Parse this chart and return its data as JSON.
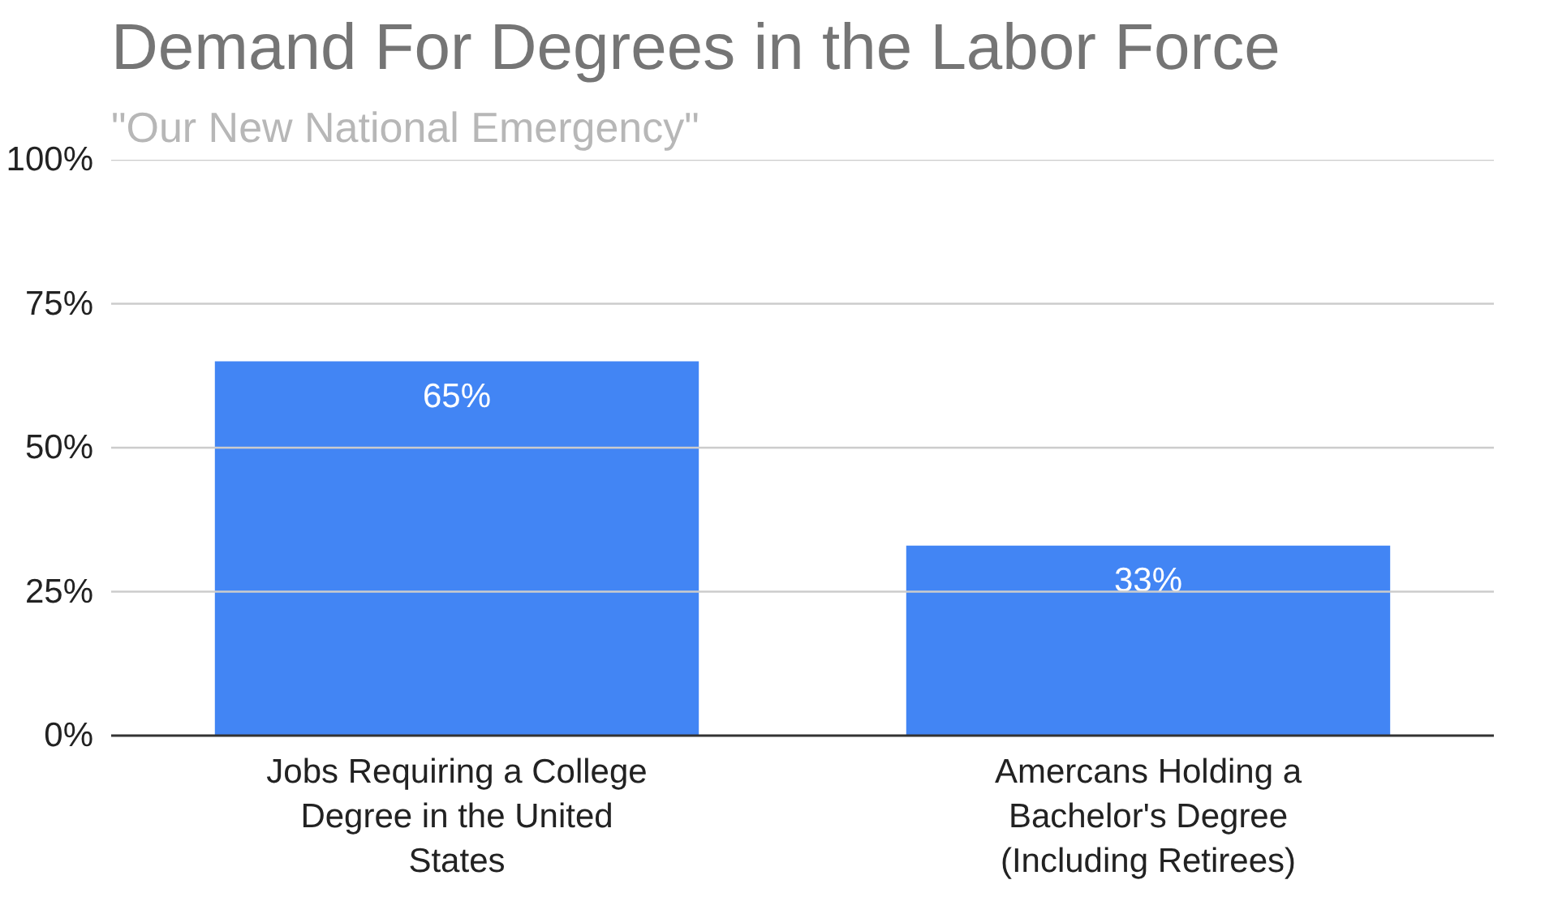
{
  "chart_data": {
    "type": "bar",
    "title": "Demand For Degrees in the Labor Force",
    "subtitle": "\"Our New National Emergency\"",
    "categories": [
      "Jobs Requiring a College Degree in the United States",
      "Amercans Holding a Bachelor's Degree (Including Retirees)"
    ],
    "values": [
      65,
      33
    ],
    "color": "#4285f4",
    "data_labels": true,
    "value_labels": [
      "65%",
      "33%"
    ],
    "ylim": [
      0,
      100
    ],
    "yticks": [
      {
        "value": 0,
        "label": "0%"
      },
      {
        "value": 25,
        "label": "25%"
      },
      {
        "value": 50,
        "label": "50%"
      },
      {
        "value": 75,
        "label": "75%"
      },
      {
        "value": 100,
        "label": "100%"
      }
    ],
    "grid": "y"
  }
}
